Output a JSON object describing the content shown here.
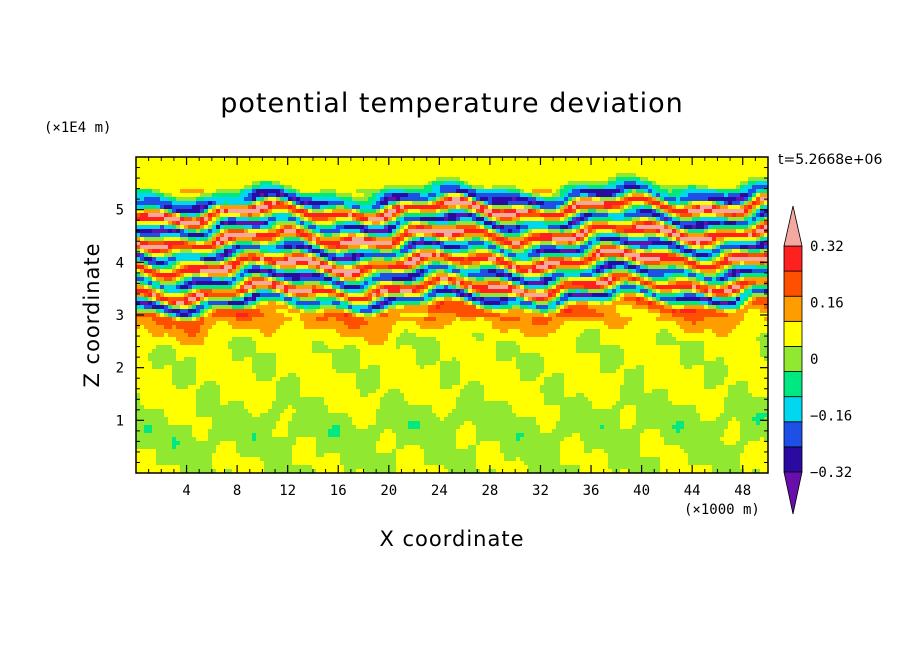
{
  "chart_data": {
    "type": "heatmap",
    "title": "potential temperature deviation",
    "xlabel": "X coordinate",
    "ylabel": "Z coordinate",
    "x_unit": "(×1000 m)",
    "y_unit": "(×1E4 m)",
    "time_label": "t=5.2668e+06",
    "xlim": [
      0,
      50
    ],
    "ylim": [
      0,
      6
    ],
    "x_ticks": [
      "4",
      "8",
      "12",
      "16",
      "20",
      "24",
      "28",
      "32",
      "36",
      "40",
      "44",
      "48"
    ],
    "y_ticks": [
      "1",
      "2",
      "3",
      "4",
      "5"
    ],
    "colorbar": {
      "levels": [
        -0.4,
        -0.32,
        -0.24,
        -0.16,
        -0.08,
        0,
        0.08,
        0.16,
        0.24,
        0.32,
        0.4
      ],
      "tick_labels": [
        "0.32",
        "0.16",
        "0",
        "−0.16",
        "−0.32"
      ],
      "tick_values": [
        0.32,
        0.16,
        0,
        -0.16,
        -0.32
      ],
      "colors": [
        "#6a0dad",
        "#2a0aa0",
        "#1e50e8",
        "#00d8f0",
        "#00e880",
        "#90e830",
        "#ffff00",
        "#ff9c00",
        "#ff5000",
        "#ff2020",
        "#f4a8a0"
      ],
      "extend": "both"
    },
    "bands": [
      {
        "z": 0.2,
        "value": 0.0
      },
      {
        "z": 0.9,
        "value": -0.04
      },
      {
        "z": 1.5,
        "value": 0.02
      },
      {
        "z": 2.5,
        "value": 0.01
      },
      {
        "z": 3.1,
        "value": 0.18
      },
      {
        "z": 3.3,
        "value": -0.36
      },
      {
        "z": 3.5,
        "value": 0.36
      },
      {
        "z": 3.75,
        "value": -0.38
      },
      {
        "z": 4.0,
        "value": 0.38
      },
      {
        "z": 4.25,
        "value": -0.38
      },
      {
        "z": 4.5,
        "value": 0.38
      },
      {
        "z": 4.75,
        "value": -0.38
      },
      {
        "z": 5.0,
        "value": 0.38
      },
      {
        "z": 5.2,
        "value": -0.36
      },
      {
        "z": 5.5,
        "value": 0.06
      },
      {
        "z": 5.85,
        "value": 0.04
      }
    ]
  }
}
